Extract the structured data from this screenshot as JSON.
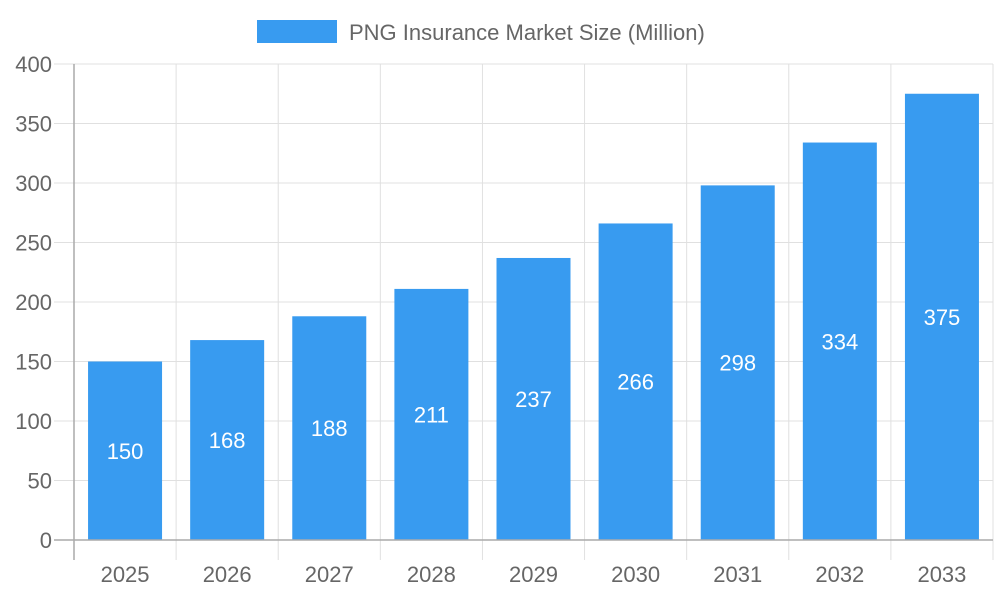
{
  "chart_data": {
    "type": "bar",
    "categories": [
      "2025",
      "2026",
      "2027",
      "2028",
      "2029",
      "2030",
      "2031",
      "2032",
      "2033"
    ],
    "series": [
      {
        "name": "PNG Insurance Market Size (Million)",
        "values": [
          150,
          168,
          188,
          211,
          237,
          266,
          298,
          334,
          375
        ],
        "color": "#389BF0"
      }
    ],
    "data_labels": [
      "150",
      "168",
      "188",
      "211",
      "237",
      "266",
      "298",
      "334",
      "375"
    ],
    "ylim": [
      0,
      400
    ],
    "yticks": [
      "0",
      "50",
      "100",
      "150",
      "200",
      "250",
      "300",
      "350",
      "400"
    ],
    "grid": true,
    "legend_position": "top"
  }
}
